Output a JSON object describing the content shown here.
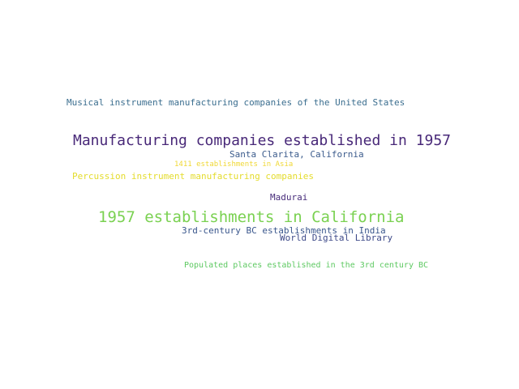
{
  "word_cloud": {
    "words": [
      {
        "text": "Musical instrument manufacturing companies of the United States",
        "color": "#3b6e8f"
      },
      {
        "text": "Manufacturing companies established in 1957",
        "color": "#482878"
      },
      {
        "text": "Santa Clarita, California",
        "color": "#3b5b8c"
      },
      {
        "text": "1411 establishments in Asia",
        "color": "#f0d835"
      },
      {
        "text": "Percussion instrument manufacturing companies",
        "color": "#e4dc2c"
      },
      {
        "text": "Madurai",
        "color": "#472c7a"
      },
      {
        "text": "1957 establishments in California",
        "color": "#7ad151"
      },
      {
        "text": "3rd-century BC establishments in India",
        "color": "#39568c"
      },
      {
        "text": "World Digital Library",
        "color": "#3e4a89"
      },
      {
        "text": "Populated places established in the 3rd century BC",
        "color": "#5ec962"
      }
    ]
  }
}
